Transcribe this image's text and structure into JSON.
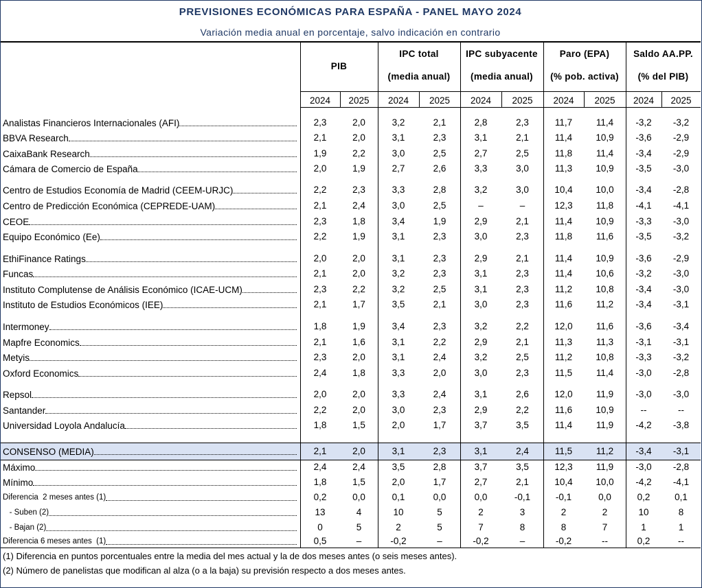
{
  "title": "PREVISIONES ECONÓMICAS PARA ESPAÑA - PANEL MAYO 2024",
  "subtitle": "Variación media anual en porcentaje, salvo indicación en contrario",
  "columns": [
    {
      "line1": "PIB",
      "line2": ""
    },
    {
      "line1": "IPC total",
      "line2": "(media anual)"
    },
    {
      "line1": "IPC subyacente",
      "line2": "(media anual)"
    },
    {
      "line1": "Paro (EPA)",
      "line2": "(% pob. activa)"
    },
    {
      "line1": "Saldo AA.PP.",
      "line2": "(% del PIB)"
    }
  ],
  "years": [
    "2024",
    "2025",
    "2024",
    "2025",
    "2024",
    "2025",
    "2024",
    "2025",
    "2024",
    "2025"
  ],
  "rows": [
    {
      "label": "Analistas Financieros Internacionales (AFI)",
      "values": [
        "2,3",
        "2,0",
        "3,2",
        "2,1",
        "2,8",
        "2,3",
        "11,7",
        "11,4",
        "-3,2",
        "-3,2"
      ]
    },
    {
      "label": "BBVA Research",
      "values": [
        "2,1",
        "2,0",
        "3,1",
        "2,3",
        "3,1",
        "2,1",
        "11,4",
        "10,9",
        "-3,6",
        "-2,9"
      ]
    },
    {
      "label": "CaixaBank Research",
      "values": [
        "1,9",
        "2,2",
        "3,0",
        "2,5",
        "2,7",
        "2,5",
        "11,8",
        "11,4",
        "-3,4",
        "-2,9"
      ]
    },
    {
      "label": "Cámara de Comercio de España",
      "values": [
        "2,0",
        "1,9",
        "2,7",
        "2,6",
        "3,3",
        "3,0",
        "11,3",
        "10,9",
        "-3,5",
        "-3,0"
      ]
    },
    {
      "label": "Centro de Estudios Economía de Madrid (CEEM-URJC)",
      "values": [
        "2,2",
        "2,3",
        "3,3",
        "2,8",
        "3,2",
        "3,0",
        "10,4",
        "10,0",
        "-3,4",
        "-2,8"
      ]
    },
    {
      "label": "Centro de Predicción Económica (CEPREDE-UAM)",
      "values": [
        "2,1",
        "2,4",
        "3,0",
        "2,5",
        "–",
        "–",
        "12,3",
        "11,8",
        "-4,1",
        "-4,1"
      ]
    },
    {
      "label": "CEOE",
      "values": [
        "2,3",
        "1,8",
        "3,4",
        "1,9",
        "2,9",
        "2,1",
        "11,4",
        "10,9",
        "-3,3",
        "-3,0"
      ]
    },
    {
      "label": "Equipo Económico (Ee)",
      "values": [
        "2,2",
        "1,9",
        "3,1",
        "2,3",
        "3,0",
        "2,3",
        "11,8",
        "11,6",
        "-3,5",
        "-3,2"
      ]
    },
    {
      "label": "EthiFinance Ratings",
      "values": [
        "2,0",
        "2,0",
        "3,1",
        "2,3",
        "2,9",
        "2,1",
        "11,4",
        "10,9",
        "-3,6",
        "-2,9"
      ]
    },
    {
      "label": "Funcas",
      "values": [
        "2,1",
        "2,0",
        "3,2",
        "2,3",
        "3,1",
        "2,3",
        "11,4",
        "10,6",
        "-3,2",
        "-3,0"
      ]
    },
    {
      "label": "Instituto Complutense de Análisis Económico (ICAE-UCM)",
      "values": [
        "2,3",
        "2,2",
        "3,2",
        "2,5",
        "3,1",
        "2,3",
        "11,2",
        "10,8",
        "-3,4",
        "-3,0"
      ]
    },
    {
      "label": "Instituto de Estudios Económicos (IEE)",
      "values": [
        "2,1",
        "1,7",
        "3,5",
        "2,1",
        "3,0",
        "2,3",
        "11,6",
        "11,2",
        "-3,4",
        "-3,1"
      ]
    },
    {
      "label": "Intermoney",
      "values": [
        "1,8",
        "1,9",
        "3,4",
        "2,3",
        "3,2",
        "2,2",
        "12,0",
        "11,6",
        "-3,6",
        "-3,4"
      ]
    },
    {
      "label": "Mapfre Economics",
      "values": [
        "2,1",
        "1,6",
        "3,1",
        "2,2",
        "2,9",
        "2,1",
        "11,3",
        "11,3",
        "-3,1",
        "-3,1"
      ]
    },
    {
      "label": "Metyis",
      "values": [
        "2,3",
        "2,0",
        "3,1",
        "2,4",
        "3,2",
        "2,5",
        "11,2",
        "10,8",
        "-3,3",
        "-3,2"
      ]
    },
    {
      "label": "Oxford Economics",
      "values": [
        "2,4",
        "1,8",
        "3,3",
        "2,0",
        "3,0",
        "2,3",
        "11,5",
        "11,4",
        "-3,0",
        "-2,8"
      ]
    },
    {
      "label": "Repsol",
      "values": [
        "2,0",
        "2,0",
        "3,3",
        "2,4",
        "3,1",
        "2,6",
        "12,0",
        "11,9",
        "-3,0",
        "-3,0"
      ]
    },
    {
      "label": "Santander",
      "values": [
        "2,2",
        "2,0",
        "3,0",
        "2,3",
        "2,9",
        "2,2",
        "11,6",
        "10,9",
        "--",
        "--"
      ]
    },
    {
      "label": "Universidad Loyola Andalucía",
      "values": [
        "1,8",
        "1,5",
        "2,0",
        "1,7",
        "3,7",
        "3,5",
        "11,4",
        "11,9",
        "-4,2",
        "-3,8"
      ]
    }
  ],
  "consensus": {
    "label": "CONSENSO (MEDIA)",
    "values": [
      "2,1",
      "2,0",
      "3,1",
      "2,3",
      "3,1",
      "2,4",
      "11,5",
      "11,2",
      "-3,4",
      "-3,1"
    ]
  },
  "stats": [
    {
      "label": "Máximo",
      "values": [
        "2,4",
        "2,4",
        "3,5",
        "2,8",
        "3,7",
        "3,5",
        "12,3",
        "11,9",
        "-3,0",
        "-2,8"
      ]
    },
    {
      "label": "Mínimo",
      "values": [
        "1,8",
        "1,5",
        "2,0",
        "1,7",
        "2,7",
        "2,1",
        "10,4",
        "10,0",
        "-4,2",
        "-4,1"
      ]
    },
    {
      "label": "Diferencia  2 meses antes (1)",
      "values": [
        "0,2",
        "0,0",
        "0,1",
        "0,0",
        "0,0",
        "-0,1",
        "-0,1",
        "0,0",
        "0,2",
        "0,1"
      ]
    },
    {
      "label": "   - Suben (2)",
      "values": [
        "13",
        "4",
        "10",
        "5",
        "2",
        "3",
        "2",
        "2",
        "10",
        "8"
      ]
    },
    {
      "label": "   - Bajan (2)",
      "values": [
        "0",
        "5",
        "2",
        "5",
        "7",
        "8",
        "8",
        "7",
        "1",
        "1"
      ]
    },
    {
      "label": "Diferencia 6 meses antes  (1)",
      "values": [
        "0,5",
        "–",
        "-0,2",
        "–",
        "-0,2",
        "–",
        "-0,2",
        "--",
        "0,2",
        "--"
      ]
    }
  ],
  "notes": [
    "(1) Diferencia en puntos porcentuales entre la media del mes actual y la de dos meses antes (o seis meses antes).",
    "(2) Número de panelistas que modifican al alza (o a la baja) su previsión respecto a dos meses antes."
  ],
  "colors": {
    "title": "#1f3864",
    "consensus_band": "#d9e2f3",
    "rule": "#000000"
  }
}
